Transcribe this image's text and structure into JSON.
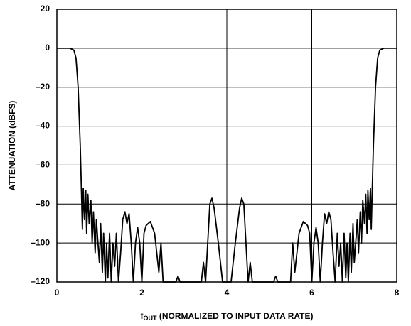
{
  "chart_data": {
    "type": "line",
    "ylabel": "ATTENUATION (dBFS)",
    "xlabel": {
      "main": "f",
      "sub": "OUT",
      "rest": " (NORMALIZED TO INPUT DATA RATE)"
    },
    "color": "#000000",
    "grid": true,
    "xlim": [
      0,
      8
    ],
    "xticks": [
      0,
      2,
      4,
      6,
      8
    ],
    "ylim": [
      -120,
      20
    ],
    "yticks": [
      20,
      0,
      {
        "value": -20,
        "label": "–20"
      },
      {
        "value": -40,
        "label": "–40"
      },
      {
        "value": -60,
        "label": "–60"
      },
      {
        "value": -80,
        "label": "–80"
      },
      {
        "value": -100,
        "label": "–100"
      },
      {
        "value": -120,
        "label": "–120"
      }
    ],
    "x": [
      0,
      0.3,
      0.4,
      0.45,
      0.5,
      0.55,
      0.58,
      0.6,
      0.62,
      0.65,
      0.68,
      0.7,
      0.73,
      0.76,
      0.8,
      0.83,
      0.86,
      0.9,
      0.93,
      0.96,
      1.0,
      1.03,
      1.07,
      1.1,
      1.14,
      1.17,
      1.2,
      1.24,
      1.28,
      1.32,
      1.36,
      1.4,
      1.45,
      1.5,
      1.55,
      1.6,
      1.65,
      1.7,
      1.75,
      1.8,
      1.85,
      1.9,
      1.95,
      2.0,
      2.05,
      2.1,
      2.2,
      2.3,
      2.4,
      2.45,
      2.5,
      2.8,
      2.85,
      2.9,
      3.1,
      3.4,
      3.45,
      3.5,
      3.55,
      3.6,
      3.65,
      3.7,
      3.8,
      3.9,
      4.0,
      4.1,
      4.2,
      4.3,
      4.35,
      4.4,
      4.45,
      4.5,
      4.55,
      4.6,
      4.9,
      5.1,
      5.15,
      5.2,
      5.5,
      5.55,
      5.6,
      5.7,
      5.8,
      5.9,
      5.95,
      6.0,
      6.05,
      6.1,
      6.15,
      6.2,
      6.25,
      6.3,
      6.35,
      6.4,
      6.45,
      6.5,
      6.55,
      6.6,
      6.64,
      6.68,
      6.72,
      6.76,
      6.8,
      6.83,
      6.86,
      6.9,
      6.93,
      6.97,
      7.0,
      7.04,
      7.07,
      7.1,
      7.14,
      7.17,
      7.2,
      7.24,
      7.27,
      7.3,
      7.32,
      7.35,
      7.38,
      7.4,
      7.42,
      7.45,
      7.5,
      7.55,
      7.6,
      7.7,
      8
    ],
    "values": [
      0,
      0,
      -1,
      -5,
      -20,
      -50,
      -75,
      -93,
      -72,
      -88,
      -73,
      -95,
      -75,
      -90,
      -78,
      -100,
      -84,
      -105,
      -88,
      -98,
      -110,
      -90,
      -115,
      -95,
      -120,
      -100,
      -118,
      -95,
      -120,
      -100,
      -112,
      -95,
      -120,
      -105,
      -88,
      -84,
      -90,
      -85,
      -100,
      -120,
      -100,
      -92,
      -100,
      -120,
      -95,
      -91,
      -89,
      -95,
      -115,
      -100,
      -120,
      -120,
      -117,
      -120,
      -120,
      -120,
      -110,
      -120,
      -100,
      -80,
      -77,
      -82,
      -100,
      -120,
      -120,
      -120,
      -100,
      -82,
      -77,
      -80,
      -100,
      -120,
      -110,
      -120,
      -120,
      -120,
      -117,
      -120,
      -120,
      -100,
      -115,
      -95,
      -89,
      -91,
      -95,
      -120,
      -100,
      -92,
      -100,
      -120,
      -100,
      -85,
      -90,
      -84,
      -88,
      -105,
      -120,
      -95,
      -112,
      -100,
      -120,
      -95,
      -118,
      -100,
      -120,
      -95,
      -115,
      -90,
      -110,
      -98,
      -88,
      -105,
      -84,
      -100,
      -78,
      -90,
      -75,
      -95,
      -73,
      -88,
      -72,
      -93,
      -75,
      -50,
      -20,
      -5,
      -1,
      0,
      0
    ]
  }
}
